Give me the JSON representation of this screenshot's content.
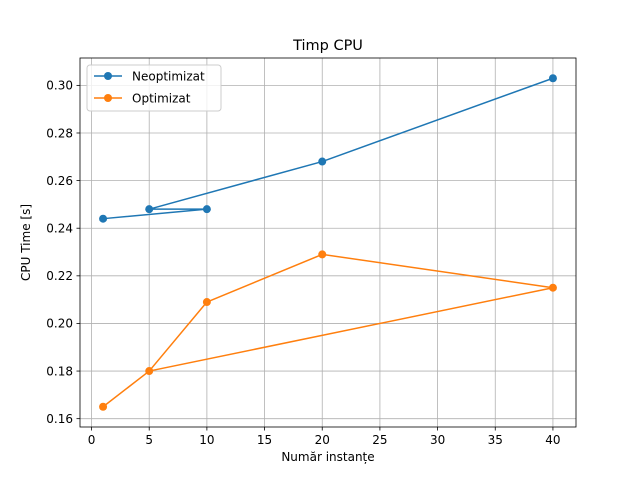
{
  "chart_data": {
    "type": "line",
    "title": "Timp CPU",
    "xlabel": "Număr instanțe",
    "ylabel": "CPU Time [s]",
    "xlim": [
      -1,
      42
    ],
    "ylim": [
      0.1565,
      0.3115
    ],
    "xticks": [
      0,
      5,
      10,
      15,
      20,
      25,
      30,
      35,
      40
    ],
    "yticks": [
      0.16,
      0.18,
      0.2,
      0.22,
      0.24,
      0.26,
      0.28,
      0.3
    ],
    "ytick_labels": [
      "0.16",
      "0.18",
      "0.20",
      "0.22",
      "0.24",
      "0.26",
      "0.28",
      "0.30"
    ],
    "grid": true,
    "legend_position": "upper-left",
    "series": [
      {
        "name": "Neoptimizat",
        "color": "#1f77b4",
        "x": [
          1,
          10,
          5,
          20,
          40,
          20
        ],
        "y": [
          0.244,
          0.248,
          0.248,
          0.268,
          0.303,
          0.268
        ],
        "points_x": [
          1,
          5,
          10,
          20,
          40
        ],
        "points_y": [
          0.244,
          0.248,
          0.248,
          0.268,
          0.303
        ]
      },
      {
        "name": "Optimizat",
        "color": "#ff7f0e",
        "x": [
          1,
          5,
          10,
          20,
          40,
          5
        ],
        "y": [
          0.165,
          0.18,
          0.209,
          0.229,
          0.215,
          0.18
        ],
        "points_x": [
          1,
          5,
          10,
          20,
          40
        ],
        "points_y": [
          0.165,
          0.18,
          0.209,
          0.229,
          0.215
        ]
      }
    ]
  }
}
